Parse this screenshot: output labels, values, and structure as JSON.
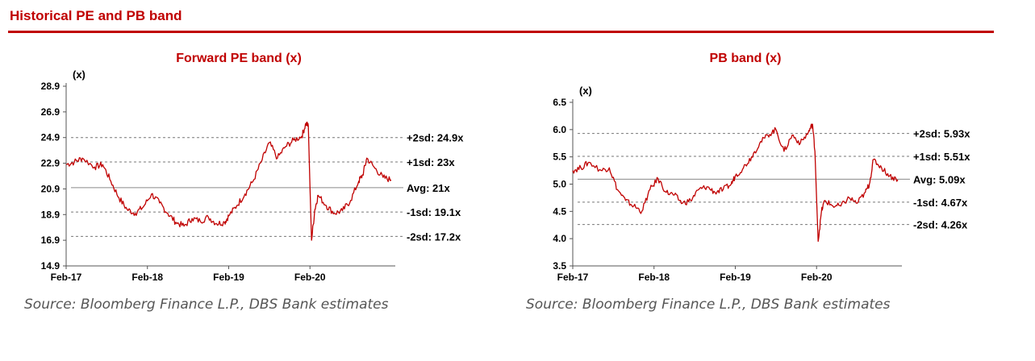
{
  "section": {
    "title": "Historical PE and PB band"
  },
  "chart_data": [
    {
      "type": "line",
      "title": "Forward PE band (x)",
      "ylabel": "(x)",
      "ylim": [
        14.9,
        28.9
      ],
      "yticks": [
        "28.9",
        "26.9",
        "24.9",
        "22.9",
        "20.9",
        "18.9",
        "16.9",
        "14.9"
      ],
      "ytick_values": [
        28.9,
        26.9,
        24.9,
        22.9,
        20.9,
        18.9,
        16.9,
        14.9
      ],
      "xlim": [
        2017.1,
        2021.15
      ],
      "xticks": [
        "Feb-17",
        "Feb-18",
        "Feb-19",
        "Feb-20"
      ],
      "xtick_values": [
        2017.1,
        2018.1,
        2019.1,
        2020.1
      ],
      "grid": false,
      "line_color": "#c00000",
      "bands": [
        {
          "label": "+2sd: 24.9x",
          "value": 24.9,
          "style": "dashed"
        },
        {
          "label": "+1sd: 23x",
          "value": 23.0,
          "style": "dashed"
        },
        {
          "label": "Avg: 21x",
          "value": 21.0,
          "style": "solid"
        },
        {
          "label": "-1sd: 19.1x",
          "value": 19.1,
          "style": "dashed"
        },
        {
          "label": "-2sd: 17.2x",
          "value": 17.2,
          "style": "dashed"
        }
      ],
      "series": [
        {
          "x": [
            2017.1,
            2017.2,
            2017.3,
            2017.45,
            2017.55,
            2017.65,
            2017.75,
            2017.85,
            2017.95,
            2018.05,
            2018.15,
            2018.25,
            2018.35,
            2018.45,
            2018.55,
            2018.65,
            2018.75,
            2018.85,
            2018.95,
            2019.05,
            2019.1,
            2019.2,
            2019.3,
            2019.4,
            2019.5,
            2019.6,
            2019.7,
            2019.8,
            2019.9,
            2020.0,
            2020.05,
            2020.08,
            2020.12,
            2020.16,
            2020.2,
            2020.3,
            2020.4,
            2020.5,
            2020.6,
            2020.7,
            2020.75,
            2020.8,
            2020.9,
            2021.0,
            2021.1
          ],
          "y": [
            22.8,
            23.0,
            23.3,
            22.6,
            22.8,
            21.5,
            20.2,
            19.3,
            19.0,
            19.5,
            20.5,
            19.8,
            19.0,
            18.3,
            18.0,
            18.6,
            18.4,
            18.7,
            18.2,
            18.3,
            18.8,
            19.6,
            20.5,
            21.5,
            23.0,
            24.5,
            23.3,
            24.2,
            24.7,
            25.0,
            26.0,
            25.8,
            16.9,
            19.3,
            20.4,
            19.6,
            19.0,
            19.2,
            20.0,
            21.5,
            22.0,
            23.3,
            22.5,
            21.8,
            21.6
          ]
        }
      ]
    },
    {
      "type": "line",
      "title": "PB band (x)",
      "ylabel": "(x)",
      "ylim": [
        3.5,
        6.5
      ],
      "yticks": [
        "6.5",
        "6.0",
        "5.5",
        "5.0",
        "4.5",
        "4.0",
        "3.5"
      ],
      "ytick_values": [
        6.5,
        6.0,
        5.5,
        5.0,
        4.5,
        4.0,
        3.5
      ],
      "xlim": [
        2017.1,
        2021.15
      ],
      "xticks": [
        "Feb-17",
        "Feb-18",
        "Feb-19",
        "Feb-20"
      ],
      "xtick_values": [
        2017.1,
        2018.1,
        2019.1,
        2020.1
      ],
      "grid": false,
      "line_color": "#c00000",
      "bands": [
        {
          "label": "+2sd: 5.93x",
          "value": 5.93,
          "style": "dashed"
        },
        {
          "label": "+1sd: 5.51x",
          "value": 5.51,
          "style": "dashed"
        },
        {
          "label": "Avg: 5.09x",
          "value": 5.09,
          "style": "solid"
        },
        {
          "label": "-1sd: 4.67x",
          "value": 4.67,
          "style": "dashed"
        },
        {
          "label": "-2sd: 4.26x",
          "value": 4.26,
          "style": "dashed"
        }
      ],
      "series": [
        {
          "x": [
            2017.1,
            2017.2,
            2017.3,
            2017.45,
            2017.55,
            2017.65,
            2017.75,
            2017.85,
            2017.95,
            2018.05,
            2018.15,
            2018.25,
            2018.35,
            2018.45,
            2018.55,
            2018.65,
            2018.75,
            2018.85,
            2018.95,
            2019.05,
            2019.1,
            2019.2,
            2019.3,
            2019.4,
            2019.5,
            2019.6,
            2019.7,
            2019.8,
            2019.9,
            2020.0,
            2020.05,
            2020.08,
            2020.12,
            2020.16,
            2020.2,
            2020.3,
            2020.4,
            2020.5,
            2020.6,
            2020.7,
            2020.75,
            2020.8,
            2020.9,
            2021.0,
            2021.1
          ],
          "y": [
            5.25,
            5.3,
            5.4,
            5.25,
            5.3,
            4.9,
            4.7,
            4.6,
            4.5,
            4.9,
            5.1,
            4.85,
            4.8,
            4.65,
            4.7,
            4.9,
            4.95,
            4.85,
            4.9,
            5.0,
            5.15,
            5.3,
            5.5,
            5.75,
            5.9,
            6.0,
            5.6,
            5.9,
            5.75,
            5.95,
            6.1,
            5.6,
            3.95,
            4.5,
            4.7,
            4.6,
            4.6,
            4.75,
            4.65,
            4.85,
            5.0,
            5.45,
            5.3,
            5.15,
            5.08
          ]
        }
      ]
    }
  ],
  "sources": [
    "Source: Bloomberg Finance L.P., DBS Bank estimates",
    "Source: Bloomberg Finance L.P., DBS Bank estimates"
  ]
}
